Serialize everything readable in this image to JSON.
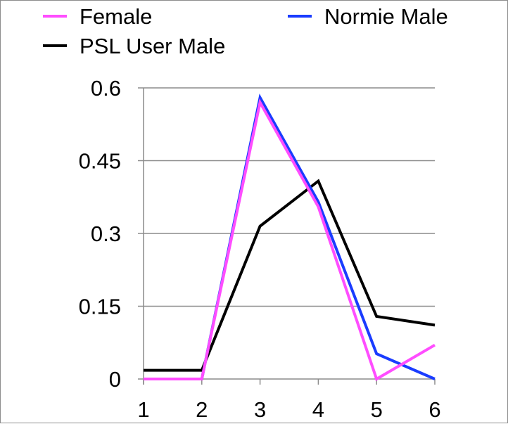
{
  "chart_data": {
    "type": "line",
    "title": "",
    "xlabel": "",
    "ylabel": "",
    "x": [
      1,
      2,
      3,
      4,
      5,
      6
    ],
    "x_tick_labels": [
      "1",
      "2",
      "3",
      "4",
      "5",
      "6"
    ],
    "y_tick_labels": [
      "0",
      "0.15",
      "0.3",
      "0.45",
      "0.6"
    ],
    "y_ticks": [
      0,
      0.15,
      0.3,
      0.45,
      0.6
    ],
    "ylim": [
      0,
      0.6
    ],
    "grid": "horizontal",
    "legend_position": "top",
    "series": [
      {
        "name": "Female",
        "color": "#ff4dff",
        "values": [
          0,
          0,
          0.57,
          0.355,
          0,
          0.07
        ]
      },
      {
        "name": "Normie Male",
        "color": "#1a3cff",
        "values": [
          0,
          0,
          0.58,
          0.365,
          0.052,
          0
        ]
      },
      {
        "name": "PSL User Male",
        "color": "#000000",
        "values": [
          0.018,
          0.018,
          0.315,
          0.408,
          0.129,
          0.111
        ]
      }
    ]
  }
}
